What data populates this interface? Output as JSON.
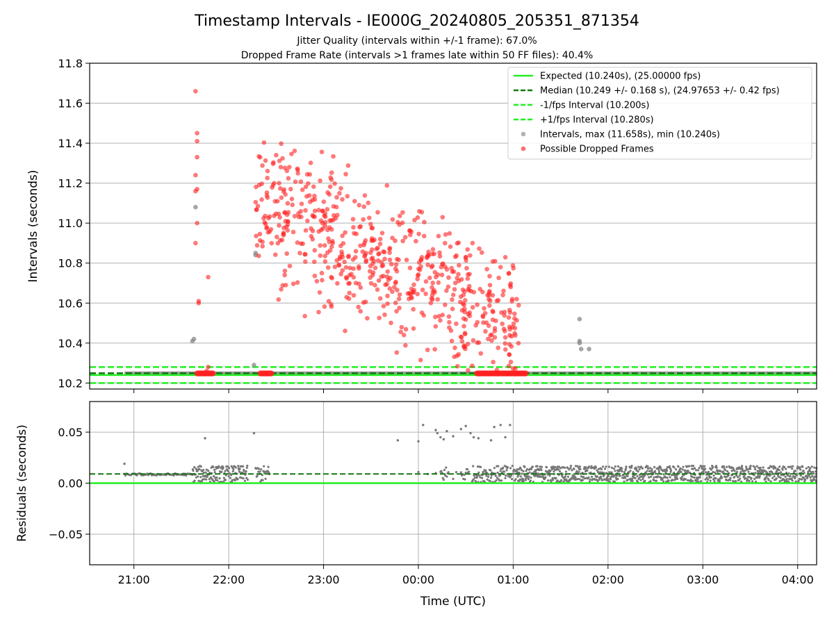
{
  "figure": {
    "title": "Timestamp Intervals - IE000G_20240805_205351_871354",
    "subtitle1": "Jitter Quality (intervals within +/-1 frame): 67.0%",
    "subtitle2": "Dropped Frame Rate (intervals >1 frames late within 50 FF files): 40.4%"
  },
  "chart_data": [
    {
      "type": "scatter",
      "panel": "top",
      "ylabel": "Intervals (seconds)",
      "xlabel": "",
      "xlim": [
        "20:32",
        "04:12"
      ],
      "ylim": [
        10.17,
        11.8
      ],
      "yticks": [
        10.2,
        10.4,
        10.6,
        10.8,
        11.0,
        11.2,
        11.4,
        11.6,
        11.8
      ],
      "ytick_labels": [
        "10.2",
        "10.4",
        "10.6",
        "10.8",
        "11.0",
        "11.2",
        "11.4",
        "11.6",
        "11.8"
      ],
      "xticks": [
        "21:00",
        "22:00",
        "23:00",
        "00:00",
        "01:00",
        "02:00",
        "03:00",
        "04:00"
      ],
      "grid": true,
      "legend_position": "top-right",
      "colors": {
        "expected": "#22ee22",
        "median": "#117711",
        "fps_interval": "#22ee22",
        "intervals": "#888888",
        "dropped": "#ff2020"
      },
      "legend": [
        {
          "label": "Expected (10.240s), (25.00000 fps)",
          "style": "solid",
          "color": "#22ee22"
        },
        {
          "label": "Median (10.249 +/- 0.168 s), (24.97653 +/- 0.42 fps)",
          "style": "dashed",
          "color": "#117711"
        },
        {
          "label": "-1/fps Interval (10.200s)",
          "style": "dashed",
          "color": "#22ee22"
        },
        {
          "label": "+1/fps Interval (10.280s)",
          "style": "dashed",
          "color": "#22ee22"
        },
        {
          "label": "Intervals, max (11.658s), min (10.240s)",
          "style": "marker",
          "color": "#888888"
        },
        {
          "label": "Possible Dropped Frames",
          "style": "marker",
          "color": "#ff2020"
        }
      ],
      "lines": {
        "expected": 10.24,
        "median": 10.249,
        "minus_fps": 10.2,
        "plus_fps": 10.28
      },
      "intervals_band": [
        [
          "20:54",
          "04:12"
        ]
      ],
      "series": [
        {
          "name": "Intervals, max (11.658s), min (10.240s)",
          "points": [
            [
              "21:37",
              10.41
            ],
            [
              "21:38",
              10.42
            ],
            [
              "21:39",
              11.08
            ],
            [
              "22:17",
              10.85
            ],
            [
              "22:17",
              10.84
            ],
            [
              "22:16",
              10.29
            ],
            [
              "01:42",
              10.52
            ],
            [
              "01:42",
              10.4
            ],
            [
              "01:43",
              10.37
            ],
            [
              "01:48",
              10.37
            ],
            [
              "01:42",
              10.41
            ]
          ]
        },
        {
          "name": "Possible Dropped Frames",
          "points": [
            [
              "21:39",
              11.66
            ],
            [
              "21:40",
              11.45
            ],
            [
              "21:40",
              11.41
            ],
            [
              "21:40",
              11.33
            ],
            [
              "21:39",
              11.24
            ],
            [
              "21:40",
              11.17
            ],
            [
              "21:39",
              11.16
            ],
            [
              "21:40",
              11.0
            ],
            [
              "21:39",
              10.9
            ],
            [
              "21:41",
              10.61
            ],
            [
              "21:41",
              10.6
            ],
            [
              "21:47",
              10.73
            ],
            [
              "21:47",
              10.28
            ],
            [
              "21:46",
              10.26
            ]
          ],
          "generated_cluster": {
            "x_range": [
              "22:17",
              "01:04"
            ],
            "y_range": [
              10.24,
              11.45
            ],
            "count": 640
          }
        }
      ]
    },
    {
      "type": "scatter",
      "panel": "bottom",
      "ylabel": "Residuals (seconds)",
      "xlabel": "Time (UTC)",
      "xlim": [
        "20:32",
        "04:12"
      ],
      "ylim": [
        -0.08,
        0.08
      ],
      "yticks": [
        -0.05,
        0.0,
        0.05
      ],
      "ytick_labels": [
        "−0.05",
        "0.00",
        "0.05"
      ],
      "xticks": [
        "21:00",
        "22:00",
        "23:00",
        "00:00",
        "01:00",
        "02:00",
        "03:00",
        "04:00"
      ],
      "xtick_labels": [
        "21:00",
        "22:00",
        "23:00",
        "00:00",
        "01:00",
        "02:00",
        "03:00",
        "04:00"
      ],
      "grid": true,
      "lines": {
        "zero": 0.0,
        "median_residual": 0.009
      },
      "outliers": [
        [
          "20:54",
          0.019
        ],
        [
          "21:45",
          0.044
        ],
        [
          "22:16",
          0.049
        ],
        [
          "23:47",
          0.042
        ],
        [
          "00:00",
          0.041
        ],
        [
          "00:03",
          0.057
        ],
        [
          "00:11",
          0.052
        ],
        [
          "00:12",
          0.049
        ],
        [
          "00:14",
          0.045
        ],
        [
          "00:16",
          0.043
        ],
        [
          "00:18",
          0.051
        ],
        [
          "00:22",
          0.046
        ],
        [
          "00:27",
          0.053
        ],
        [
          "00:30",
          0.056
        ],
        [
          "00:33",
          0.049
        ],
        [
          "00:35",
          0.045
        ],
        [
          "00:38",
          0.044
        ],
        [
          "00:46",
          0.042
        ],
        [
          "00:48",
          0.055
        ],
        [
          "00:52",
          0.057
        ],
        [
          "00:55",
          0.045
        ],
        [
          "00:58",
          0.057
        ]
      ],
      "series_color": "#777777"
    }
  ]
}
